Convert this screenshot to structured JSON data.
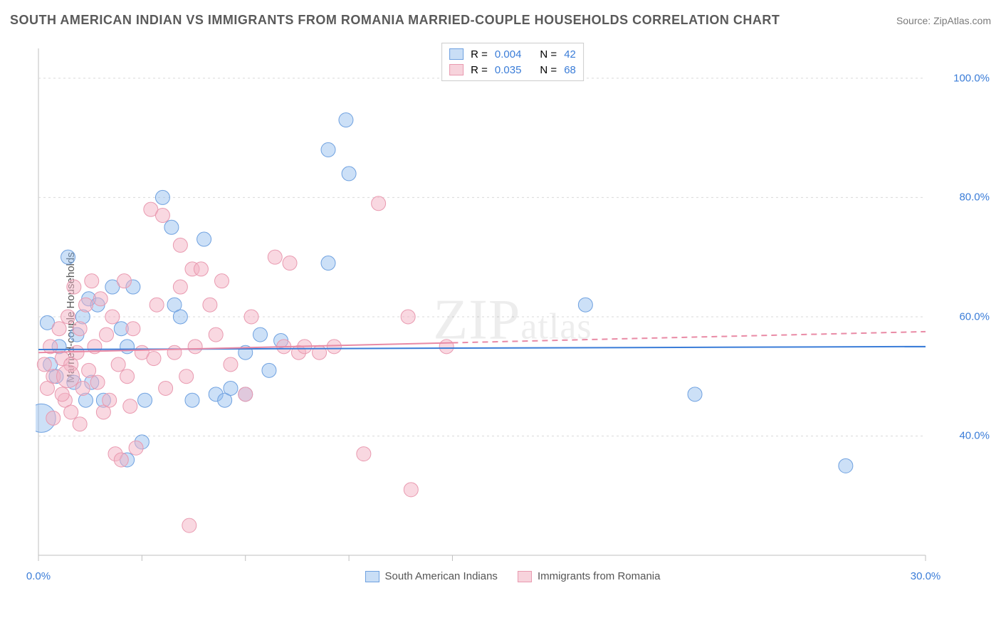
{
  "title": "SOUTH AMERICAN INDIAN VS IMMIGRANTS FROM ROMANIA MARRIED-COUPLE HOUSEHOLDS CORRELATION CHART",
  "source": "Source: ZipAtlas.com",
  "y_axis_label": "Married-couple Households",
  "watermark": {
    "big": "ZIP",
    "small": "atlas"
  },
  "legend_top": {
    "rows": [
      {
        "color_fill": "#c9def6",
        "color_stroke": "#6fa1e0",
        "r_label": "R =",
        "r_value": "0.004",
        "n_label": "N =",
        "n_value": "42"
      },
      {
        "color_fill": "#f7d3dc",
        "color_stroke": "#e99ab0",
        "r_label": "R =",
        "r_value": "0.035",
        "n_label": "N =",
        "n_value": "68"
      }
    ]
  },
  "legend_bottom": {
    "items": [
      {
        "label": "South American Indians",
        "color_fill": "#c9def6",
        "color_stroke": "#6fa1e0"
      },
      {
        "label": "Immigrants from Romania",
        "color_fill": "#f7d3dc",
        "color_stroke": "#e99ab0"
      }
    ]
  },
  "chart": {
    "type": "scatter",
    "background_color": "#ffffff",
    "grid_color": "#d9d9d9",
    "border_color": "#bfbfbf",
    "xlim": [
      0,
      30
    ],
    "ylim": [
      20,
      105
    ],
    "y_ticks": [
      40,
      60,
      80,
      100
    ],
    "y_tick_labels": [
      "40.0%",
      "60.0%",
      "80.0%",
      "100.0%"
    ],
    "x_ticks": [
      0,
      3.5,
      7,
      10.5,
      14,
      30
    ],
    "x_major_labels": [
      {
        "x": 0,
        "label": "0.0%"
      },
      {
        "x": 30,
        "label": "30.0%"
      }
    ],
    "trend_lines": [
      {
        "series": "blue",
        "color": "#3b7dd8",
        "width": 2,
        "x1": 0,
        "y1": 54.5,
        "x2": 30,
        "y2": 55.0,
        "dash_from_x": null
      },
      {
        "series": "pink",
        "color": "#e98aa5",
        "width": 2,
        "x1": 0,
        "y1": 54.0,
        "x2": 30,
        "y2": 57.5,
        "dash_from_x": 14
      }
    ],
    "series": [
      {
        "name": "South American Indians",
        "fill": "rgba(143,187,237,0.45)",
        "stroke": "#6fa1e0",
        "radius_default": 10,
        "points": [
          {
            "x": 0.1,
            "y": 43,
            "r": 20
          },
          {
            "x": 0.3,
            "y": 59
          },
          {
            "x": 0.4,
            "y": 52
          },
          {
            "x": 0.6,
            "y": 50
          },
          {
            "x": 1.0,
            "y": 70
          },
          {
            "x": 1.2,
            "y": 49
          },
          {
            "x": 1.5,
            "y": 60
          },
          {
            "x": 1.6,
            "y": 46
          },
          {
            "x": 1.7,
            "y": 63
          },
          {
            "x": 1.8,
            "y": 49
          },
          {
            "x": 2.0,
            "y": 62
          },
          {
            "x": 2.2,
            "y": 46
          },
          {
            "x": 2.5,
            "y": 65
          },
          {
            "x": 3.0,
            "y": 55
          },
          {
            "x": 3.2,
            "y": 65
          },
          {
            "x": 3.5,
            "y": 39
          },
          {
            "x": 3.0,
            "y": 36
          },
          {
            "x": 3.6,
            "y": 46
          },
          {
            "x": 4.2,
            "y": 80
          },
          {
            "x": 4.6,
            "y": 62
          },
          {
            "x": 4.5,
            "y": 75
          },
          {
            "x": 4.8,
            "y": 60
          },
          {
            "x": 5.2,
            "y": 46
          },
          {
            "x": 5.6,
            "y": 73
          },
          {
            "x": 6.0,
            "y": 47
          },
          {
            "x": 6.3,
            "y": 46
          },
          {
            "x": 6.5,
            "y": 48
          },
          {
            "x": 7.0,
            "y": 47
          },
          {
            "x": 7.5,
            "y": 57
          },
          {
            "x": 7.0,
            "y": 54
          },
          {
            "x": 7.8,
            "y": 51
          },
          {
            "x": 8.2,
            "y": 56
          },
          {
            "x": 9.8,
            "y": 69
          },
          {
            "x": 9.8,
            "y": 88
          },
          {
            "x": 10.4,
            "y": 93
          },
          {
            "x": 10.5,
            "y": 84
          },
          {
            "x": 18.5,
            "y": 62
          },
          {
            "x": 22.2,
            "y": 47
          },
          {
            "x": 27.3,
            "y": 35
          },
          {
            "x": 2.8,
            "y": 58
          },
          {
            "x": 0.7,
            "y": 55
          },
          {
            "x": 1.3,
            "y": 57
          }
        ]
      },
      {
        "name": "Immigrants from Romania",
        "fill": "rgba(244,178,196,0.50)",
        "stroke": "#e99ab0",
        "radius_default": 10,
        "points": [
          {
            "x": 0.2,
            "y": 52
          },
          {
            "x": 0.4,
            "y": 55
          },
          {
            "x": 0.5,
            "y": 50
          },
          {
            "x": 0.7,
            "y": 58
          },
          {
            "x": 0.8,
            "y": 53
          },
          {
            "x": 0.9,
            "y": 46
          },
          {
            "x": 1.0,
            "y": 60
          },
          {
            "x": 1.1,
            "y": 52
          },
          {
            "x": 1.2,
            "y": 65
          },
          {
            "x": 1.3,
            "y": 54
          },
          {
            "x": 1.4,
            "y": 58
          },
          {
            "x": 1.5,
            "y": 48
          },
          {
            "x": 1.6,
            "y": 62
          },
          {
            "x": 1.7,
            "y": 51
          },
          {
            "x": 1.8,
            "y": 66
          },
          {
            "x": 1.9,
            "y": 55
          },
          {
            "x": 2.0,
            "y": 49
          },
          {
            "x": 2.1,
            "y": 63
          },
          {
            "x": 2.2,
            "y": 44
          },
          {
            "x": 2.3,
            "y": 57
          },
          {
            "x": 2.4,
            "y": 46
          },
          {
            "x": 2.5,
            "y": 60
          },
          {
            "x": 2.6,
            "y": 37
          },
          {
            "x": 2.7,
            "y": 52
          },
          {
            "x": 2.8,
            "y": 36
          },
          {
            "x": 2.9,
            "y": 66
          },
          {
            "x": 3.0,
            "y": 50
          },
          {
            "x": 3.1,
            "y": 45
          },
          {
            "x": 3.2,
            "y": 58
          },
          {
            "x": 3.5,
            "y": 54
          },
          {
            "x": 3.8,
            "y": 78
          },
          {
            "x": 4.0,
            "y": 62
          },
          {
            "x": 4.2,
            "y": 77
          },
          {
            "x": 4.3,
            "y": 48
          },
          {
            "x": 4.6,
            "y": 54
          },
          {
            "x": 4.8,
            "y": 65
          },
          {
            "x": 4.8,
            "y": 72
          },
          {
            "x": 5.0,
            "y": 50
          },
          {
            "x": 5.1,
            "y": 25
          },
          {
            "x": 5.2,
            "y": 68
          },
          {
            "x": 5.3,
            "y": 55
          },
          {
            "x": 5.5,
            "y": 68
          },
          {
            "x": 5.8,
            "y": 62
          },
          {
            "x": 6.0,
            "y": 57
          },
          {
            "x": 6.2,
            "y": 66
          },
          {
            "x": 6.5,
            "y": 52
          },
          {
            "x": 7.0,
            "y": 47
          },
          {
            "x": 7.2,
            "y": 60
          },
          {
            "x": 8.0,
            "y": 70
          },
          {
            "x": 8.3,
            "y": 55
          },
          {
            "x": 8.5,
            "y": 69
          },
          {
            "x": 8.8,
            "y": 54
          },
          {
            "x": 9.0,
            "y": 55
          },
          {
            "x": 9.5,
            "y": 54
          },
          {
            "x": 10.0,
            "y": 55
          },
          {
            "x": 11.0,
            "y": 37
          },
          {
            "x": 11.5,
            "y": 79
          },
          {
            "x": 12.6,
            "y": 31
          },
          {
            "x": 12.5,
            "y": 60
          },
          {
            "x": 13.8,
            "y": 55
          },
          {
            "x": 1.0,
            "y": 50,
            "r": 16
          },
          {
            "x": 0.3,
            "y": 48
          },
          {
            "x": 0.5,
            "y": 43
          },
          {
            "x": 0.8,
            "y": 47
          },
          {
            "x": 1.1,
            "y": 44
          },
          {
            "x": 1.4,
            "y": 42
          },
          {
            "x": 3.3,
            "y": 38
          },
          {
            "x": 3.9,
            "y": 53
          }
        ]
      }
    ]
  }
}
